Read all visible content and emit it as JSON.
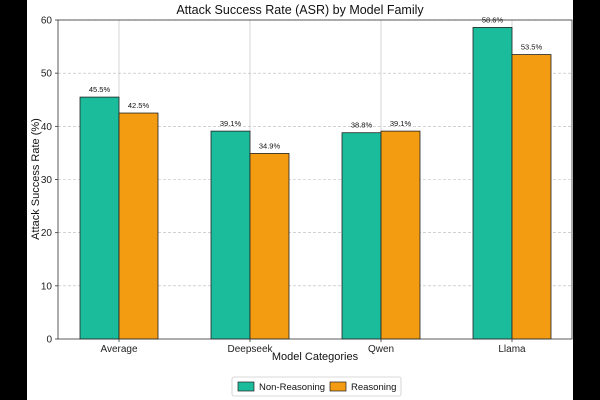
{
  "chart_data": {
    "type": "bar",
    "title": "Attack Success Rate (ASR) by Model Family",
    "xlabel": "Model Categories",
    "ylabel": "Attack Success Rate (%)",
    "categories": [
      "Average",
      "Deepseek",
      "Qwen",
      "Llama"
    ],
    "series": [
      {
        "name": "Non-Reasoning",
        "color": "#1ABC9C",
        "values": [
          45.5,
          39.1,
          38.8,
          58.6
        ],
        "labels": [
          "45.5%",
          "39.1%",
          "38.8%",
          "58.6%"
        ]
      },
      {
        "name": "Reasoning",
        "color": "#F39C12",
        "values": [
          42.5,
          34.9,
          39.1,
          53.5
        ],
        "labels": [
          "42.5%",
          "34.9%",
          "39.1%",
          "53.5%"
        ]
      }
    ],
    "ylim": [
      0,
      60
    ],
    "yticks": [
      0,
      10,
      20,
      30,
      40,
      50,
      60
    ],
    "grid": true,
    "legend_position": "bottom-center"
  }
}
